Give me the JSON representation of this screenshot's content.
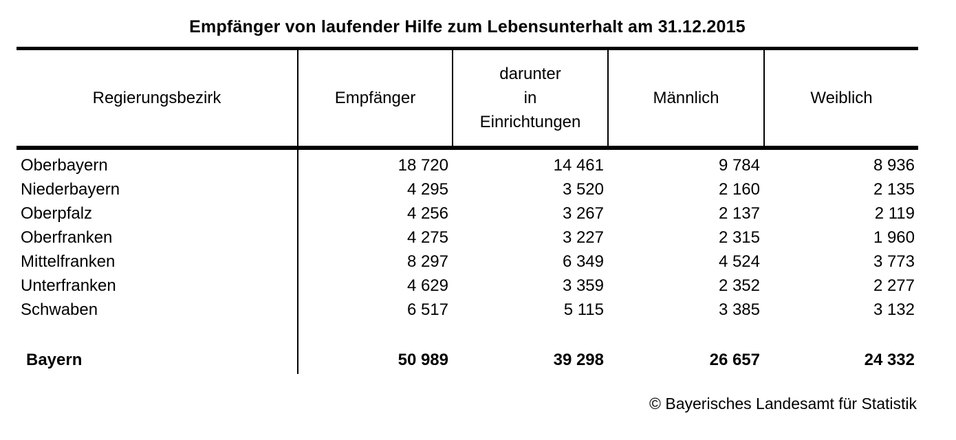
{
  "title": "Empfänger von laufender Hilfe zum Lebensunterhalt am 31.12.2015",
  "chart_data": {
    "type": "table",
    "columns": {
      "col1": "Regierungsbezirk",
      "col2": "Empfänger",
      "col3": "darunter\nin\nEinrichtungen",
      "col4": "Männlich",
      "col5": "Weiblich"
    },
    "rows": [
      {
        "region": "Oberbayern",
        "empfaenger": "18 720",
        "einrichtungen": "14 461",
        "maennlich": "9 784",
        "weiblich": "8 936"
      },
      {
        "region": "Niederbayern",
        "empfaenger": "4 295",
        "einrichtungen": "3 520",
        "maennlich": "2 160",
        "weiblich": "2 135"
      },
      {
        "region": "Oberpfalz",
        "empfaenger": "4 256",
        "einrichtungen": "3 267",
        "maennlich": "2 137",
        "weiblich": "2 119"
      },
      {
        "region": "Oberfranken",
        "empfaenger": "4 275",
        "einrichtungen": "3 227",
        "maennlich": "2 315",
        "weiblich": "1 960"
      },
      {
        "region": "Mittelfranken",
        "empfaenger": "8 297",
        "einrichtungen": "6 349",
        "maennlich": "4 524",
        "weiblich": "3 773"
      },
      {
        "region": "Unterfranken",
        "empfaenger": "4 629",
        "einrichtungen": "3 359",
        "maennlich": "2 352",
        "weiblich": "2 277"
      },
      {
        "region": "Schwaben",
        "empfaenger": "6 517",
        "einrichtungen": "5 115",
        "maennlich": "3 385",
        "weiblich": "3 132"
      }
    ],
    "total": {
      "region": "Bayern",
      "empfaenger": "50 989",
      "einrichtungen": "39 298",
      "maennlich": "26 657",
      "weiblich": "24 332"
    }
  },
  "footer": {
    "copyright": "© Bayerisches Landesamt für Statistik"
  }
}
